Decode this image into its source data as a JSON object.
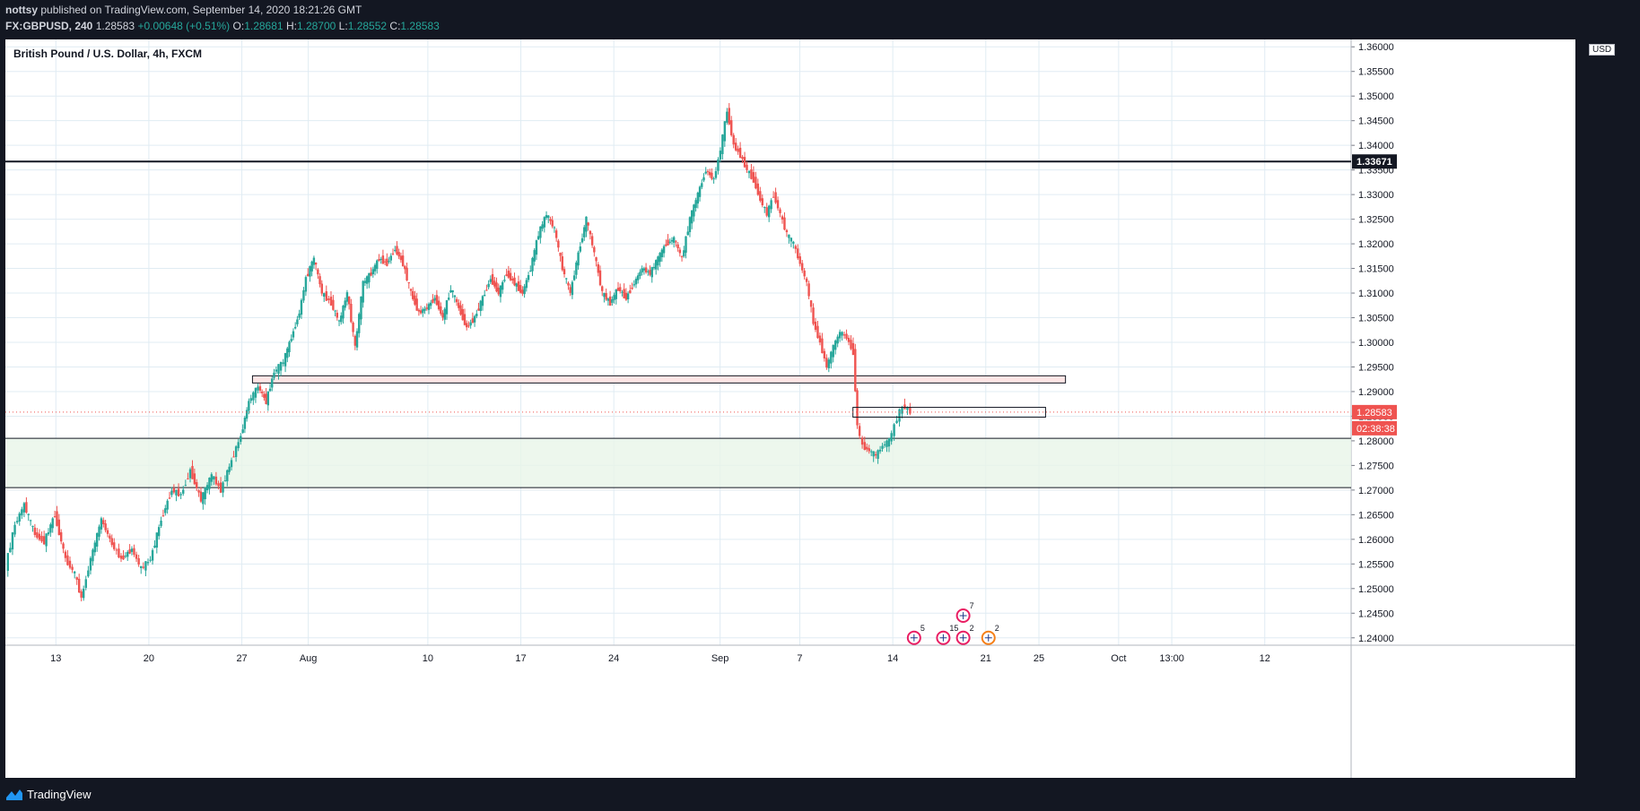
{
  "header": {
    "author": "nottsy",
    "published_text": "published on TradingView.com, September 14, 2020 18:21:26 GMT",
    "symbol": "FX:GBPUSD, 240",
    "last": "1.28583",
    "change": "+0.00648 (+0.51%)",
    "open_label": "O:",
    "open": "1.28681",
    "high_label": "H:",
    "high": "1.28700",
    "low_label": "L:",
    "low": "1.28552",
    "close_label": "C:",
    "close": "1.28583"
  },
  "chart_title": "British Pound / U.S. Dollar, 4h, FXCM",
  "currency": "USD",
  "footer": {
    "brand": "TradingView"
  },
  "colors": {
    "up": "#26a69a",
    "down": "#ef5350",
    "background": "#131722",
    "chart_bg": "#ffffff"
  },
  "chart_data": {
    "type": "candlestick",
    "y_axis": [
      "1.36000",
      "1.35500",
      "1.35000",
      "1.34500",
      "1.34000",
      "1.33500",
      "1.33000",
      "1.32500",
      "1.32000",
      "1.31500",
      "1.31000",
      "1.30500",
      "1.30000",
      "1.29500",
      "1.29000",
      "1.28500",
      "1.28000",
      "1.27500",
      "1.27000",
      "1.26500",
      "1.26000",
      "1.25500",
      "1.25000",
      "1.24500",
      "1.24000"
    ],
    "ylim": [
      1.2385,
      1.3615
    ],
    "x_ticks": [
      {
        "label": "13",
        "day": 0
      },
      {
        "label": "20",
        "day": 7
      },
      {
        "label": "27",
        "day": 14
      },
      {
        "label": "Aug",
        "day": 19
      },
      {
        "label": "10",
        "day": 28
      },
      {
        "label": "17",
        "day": 35
      },
      {
        "label": "24",
        "day": 42
      },
      {
        "label": "Sep",
        "day": 50
      },
      {
        "label": "7",
        "day": 56
      },
      {
        "label": "14",
        "day": 63
      },
      {
        "label": "21",
        "day": 70
      },
      {
        "label": "25",
        "day": 74
      },
      {
        "label": "Oct",
        "day": 80
      },
      {
        "label": "13:00",
        "day": 84
      },
      {
        "label": "12",
        "day": 91
      }
    ],
    "xlim": [
      -3.8,
      97.5
    ],
    "price_series": [
      [
        -3.7,
        1.2545
      ],
      [
        -3,
        1.263
      ],
      [
        -2.3,
        1.267
      ],
      [
        -1.5,
        1.261
      ],
      [
        -0.8,
        1.2595
      ],
      [
        0,
        1.265
      ],
      [
        0.8,
        1.256
      ],
      [
        1.5,
        1.253
      ],
      [
        2,
        1.248
      ],
      [
        2.7,
        1.256
      ],
      [
        3.5,
        1.264
      ],
      [
        4.3,
        1.259
      ],
      [
        5,
        1.256
      ],
      [
        5.8,
        1.258
      ],
      [
        6.5,
        1.254
      ],
      [
        7.2,
        1.256
      ],
      [
        8,
        1.264
      ],
      [
        8.8,
        1.27
      ],
      [
        9.5,
        1.269
      ],
      [
        10.2,
        1.274
      ],
      [
        11,
        1.268
      ],
      [
        11.8,
        1.273
      ],
      [
        12.5,
        1.27
      ],
      [
        13.3,
        1.276
      ],
      [
        14,
        1.281
      ],
      [
        14.6,
        1.288
      ],
      [
        15.3,
        1.291
      ],
      [
        15.9,
        1.288
      ],
      [
        16.5,
        1.294
      ],
      [
        17.2,
        1.296
      ],
      [
        17.8,
        1.301
      ],
      [
        18.4,
        1.306
      ],
      [
        18.9,
        1.313
      ],
      [
        19.5,
        1.317
      ],
      [
        20.1,
        1.31
      ],
      [
        20.8,
        1.308
      ],
      [
        21.4,
        1.304
      ],
      [
        22,
        1.31
      ],
      [
        22.6,
        1.299
      ],
      [
        23.2,
        1.312
      ],
      [
        23.8,
        1.314
      ],
      [
        24.4,
        1.317
      ],
      [
        25,
        1.316
      ],
      [
        25.6,
        1.319
      ],
      [
        26.2,
        1.316
      ],
      [
        26.8,
        1.31
      ],
      [
        27.4,
        1.306
      ],
      [
        28,
        1.307
      ],
      [
        28.6,
        1.309
      ],
      [
        29.2,
        1.305
      ],
      [
        29.8,
        1.311
      ],
      [
        30.4,
        1.307
      ],
      [
        31,
        1.303
      ],
      [
        31.6,
        1.305
      ],
      [
        32.2,
        1.309
      ],
      [
        32.8,
        1.313
      ],
      [
        33.4,
        1.31
      ],
      [
        34,
        1.314
      ],
      [
        34.6,
        1.312
      ],
      [
        35.2,
        1.31
      ],
      [
        35.8,
        1.315
      ],
      [
        36.4,
        1.322
      ],
      [
        37,
        1.326
      ],
      [
        37.6,
        1.323
      ],
      [
        38.2,
        1.315
      ],
      [
        38.8,
        1.31
      ],
      [
        39.4,
        1.318
      ],
      [
        40,
        1.325
      ],
      [
        40.6,
        1.318
      ],
      [
        41.2,
        1.31
      ],
      [
        41.8,
        1.308
      ],
      [
        42.4,
        1.311
      ],
      [
        43,
        1.309
      ],
      [
        43.6,
        1.312
      ],
      [
        44.2,
        1.315
      ],
      [
        44.8,
        1.314
      ],
      [
        45.4,
        1.317
      ],
      [
        46,
        1.32
      ],
      [
        46.6,
        1.321
      ],
      [
        47.2,
        1.317
      ],
      [
        47.8,
        1.325
      ],
      [
        48.4,
        1.33
      ],
      [
        49,
        1.335
      ],
      [
        49.6,
        1.333
      ],
      [
        50.1,
        1.339
      ],
      [
        50.6,
        1.347
      ],
      [
        51.1,
        1.34
      ],
      [
        51.6,
        1.338
      ],
      [
        52.1,
        1.335
      ],
      [
        52.6,
        1.333
      ],
      [
        53.1,
        1.329
      ],
      [
        53.6,
        1.326
      ],
      [
        54.1,
        1.33
      ],
      [
        54.6,
        1.326
      ],
      [
        55.1,
        1.322
      ],
      [
        55.6,
        1.32
      ],
      [
        56.1,
        1.316
      ],
      [
        56.6,
        1.312
      ],
      [
        57.1,
        1.304
      ],
      [
        57.6,
        1.3
      ],
      [
        58.1,
        1.295
      ],
      [
        58.6,
        1.299
      ],
      [
        59.1,
        1.302
      ],
      [
        59.6,
        1.301
      ],
      [
        60.1,
        1.298
      ],
      [
        60.4,
        1.283
      ],
      [
        60.8,
        1.279
      ],
      [
        61.3,
        1.278
      ],
      [
        61.8,
        1.277
      ],
      [
        62.3,
        1.279
      ],
      [
        62.8,
        1.28
      ],
      [
        63.2,
        1.283
      ],
      [
        63.6,
        1.286
      ],
      [
        64,
        1.287
      ],
      [
        64.4,
        1.2858
      ]
    ]
  },
  "annotations": {
    "resistance_line_label": "1.33671",
    "resistance_line_price": 1.33671,
    "current_price_label": "1.28583",
    "current_price": 1.28583,
    "countdown": "02:38:38",
    "zone_pink_top": 1.2932,
    "zone_pink_bottom": 1.2923,
    "zone_green_top": 1.2805,
    "zone_green_bottom": 1.2705,
    "small_box_top": 1.2868,
    "small_box_bottom": 1.2848,
    "event_counts": [
      "7",
      "5",
      "15",
      "2",
      "2"
    ]
  }
}
